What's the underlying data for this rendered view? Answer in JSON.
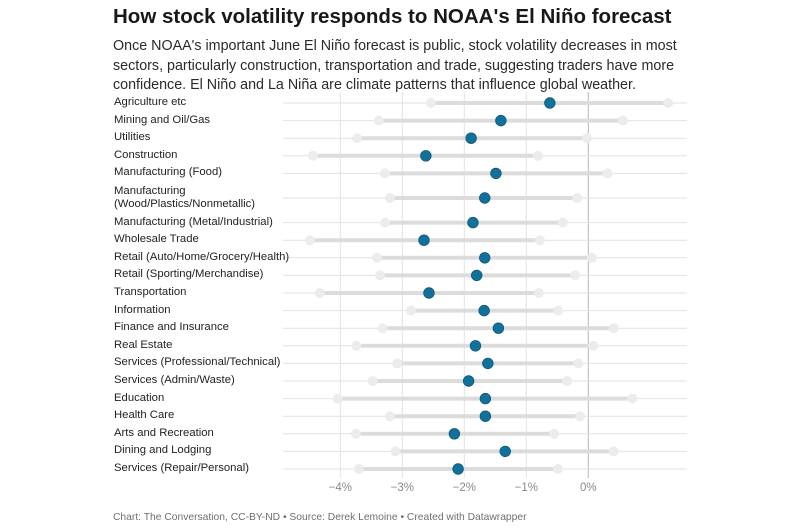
{
  "title": "How stock volatility responds to NOAA's El Niño forecast",
  "subtitle": "Once NOAA's important June El Niño forecast is public, stock volatility decreases in most sectors, particularly construction, transportation and trade, suggesting traders have more confidence. El Niño and La Niña are climate patterns that influence global weather.",
  "footer": "Chart: The Conversation, CC-BY-ND • Source: Derek Lemoine • Created with Datawrapper",
  "colors": {
    "point": "#12719b",
    "range": "#dcdcdc",
    "range_end": "#ececec",
    "grid": "#e2e2e2",
    "zero_line": "#b8b8b8"
  },
  "chart_data": {
    "type": "range-dot",
    "title": "How stock volatility responds to NOAA's El Niño forecast",
    "xlabel": "",
    "ylabel": "",
    "xlim": [
      -4.9,
      1.6
    ],
    "x_ticks": [
      -4,
      -3,
      -2,
      -1,
      0
    ],
    "x_tick_labels": [
      "−4%",
      "−3%",
      "−2%",
      "−1%",
      "0%"
    ],
    "grid": true,
    "categories": [
      "Agriculture etc",
      "Mining and Oil/Gas",
      "Utilities",
      "Construction",
      "Manufacturing (Food)",
      "Manufacturing (Wood/Plastics/Nonmetallic)",
      "Manufacturing (Metal/Industrial)",
      "Wholesale Trade",
      "Retail (Auto/Home/Grocery/Health)",
      "Retail (Sporting/Merchandise)",
      "Transportation",
      "Information",
      "Finance and Insurance",
      "Real Estate",
      "Services (Professional/Technical)",
      "Services (Admin/Waste)",
      "Education",
      "Health Care",
      "Arts and Recreation",
      "Dining and Lodging",
      "Services (Repair/Personal)"
    ],
    "values": [
      -0.62,
      -1.41,
      -1.89,
      -2.62,
      -1.49,
      -1.67,
      -1.86,
      -2.65,
      -1.67,
      -1.8,
      -2.57,
      -1.68,
      -1.45,
      -1.82,
      -1.62,
      -1.93,
      -1.66,
      -1.66,
      -2.16,
      -1.34,
      -2.1
    ],
    "lower": [
      -2.54,
      -3.38,
      -3.73,
      -4.44,
      -3.28,
      -3.2,
      -3.28,
      -4.49,
      -3.41,
      -3.36,
      -4.33,
      -2.86,
      -3.32,
      -3.74,
      -3.08,
      -3.48,
      -4.04,
      -3.2,
      -3.75,
      -3.11,
      -3.7
    ],
    "upper": [
      1.29,
      0.56,
      -0.02,
      -0.81,
      0.31,
      -0.18,
      -0.41,
      -0.78,
      0.06,
      -0.21,
      -0.8,
      -0.49,
      0.41,
      0.08,
      -0.16,
      -0.34,
      0.71,
      -0.13,
      -0.55,
      0.41,
      -0.49
    ]
  }
}
